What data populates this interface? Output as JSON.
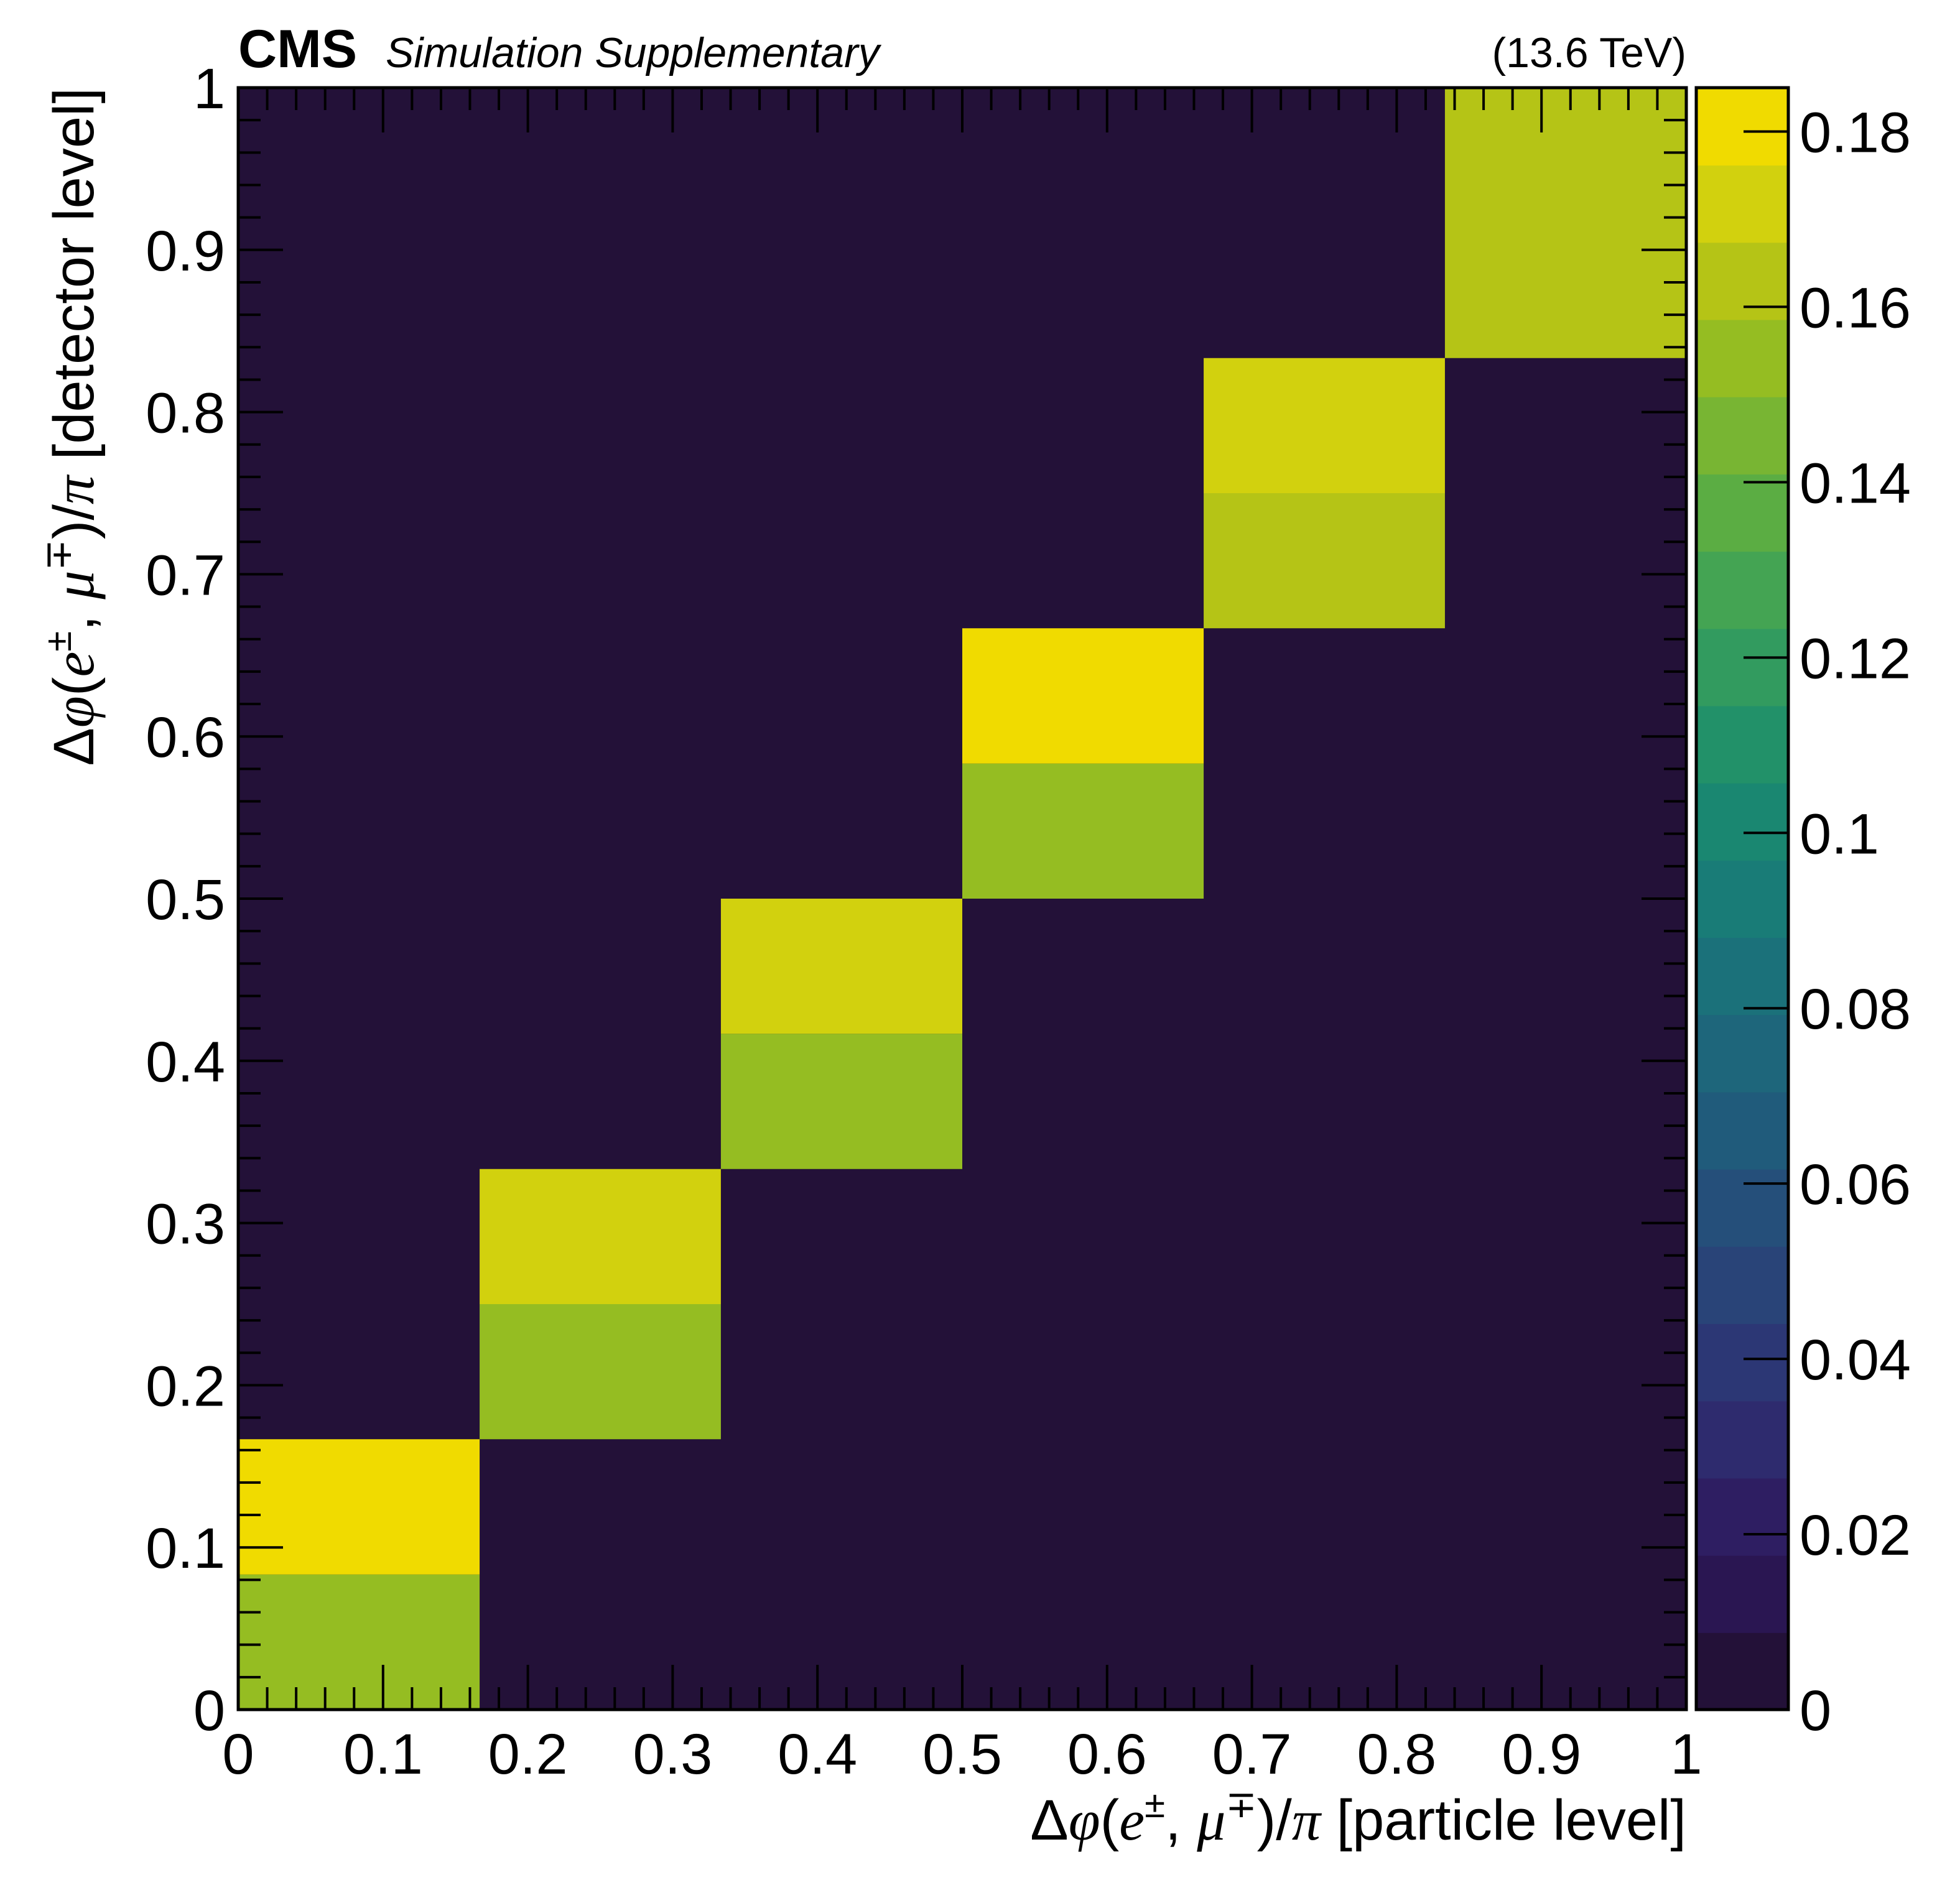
{
  "header": {
    "cms": "CMS",
    "subtitle": "Simulation Supplementary",
    "energy": "(13.6 TeV)"
  },
  "axes": {
    "x": {
      "delta_phi": "Δ",
      "phi": "φ",
      "open": "(",
      "lepton1": "e",
      "sup1": "±",
      "comma": ", ",
      "lepton2": "μ",
      "sup2": "∓",
      "close": ")/",
      "pi": "π",
      "suffix": " [particle level]"
    },
    "y": {
      "delta_phi": "Δ",
      "phi": "φ",
      "open": "(",
      "lepton1": "e",
      "sup1": "±",
      "comma": ", ",
      "lepton2": "μ",
      "sup2": "∓",
      "close": ")/",
      "pi": "π",
      "suffix": " [detector level]"
    }
  },
  "chart_data": {
    "type": "heatmap",
    "title": "",
    "xlabel": "Δφ(e±, μ∓)/π [particle level]",
    "ylabel": "Δφ(e±, μ∓)/π [detector level]",
    "xlim": [
      0,
      1
    ],
    "ylim": [
      0,
      1
    ],
    "x_ticks": [
      "0",
      "0.1",
      "0.2",
      "0.3",
      "0.4",
      "0.5",
      "0.6",
      "0.7",
      "0.8",
      "0.9",
      "1"
    ],
    "y_ticks": [
      "0",
      "0.1",
      "0.2",
      "0.3",
      "0.4",
      "0.5",
      "0.6",
      "0.7",
      "0.8",
      "0.9",
      "1"
    ],
    "x_bins": [
      0,
      0.1667,
      0.3333,
      0.5,
      0.6667,
      0.8333,
      1.0
    ],
    "y_bins": [
      0,
      0.0833,
      0.1667,
      0.25,
      0.3333,
      0.4167,
      0.5,
      0.5833,
      0.6667,
      0.75,
      0.8333,
      0.9167,
      1.0
    ],
    "cells": [
      {
        "x": [
          0,
          0.1667
        ],
        "y": [
          0,
          0.0833
        ],
        "value": 0.15
      },
      {
        "x": [
          0,
          0.1667
        ],
        "y": [
          0.0833,
          0.1667
        ],
        "value": 0.18
      },
      {
        "x": [
          0.1667,
          0.3333
        ],
        "y": [
          0.1667,
          0.25
        ],
        "value": 0.155
      },
      {
        "x": [
          0.1667,
          0.3333
        ],
        "y": [
          0.25,
          0.3333
        ],
        "value": 0.17
      },
      {
        "x": [
          0.3333,
          0.5
        ],
        "y": [
          0.3333,
          0.4167
        ],
        "value": 0.155
      },
      {
        "x": [
          0.3333,
          0.5
        ],
        "y": [
          0.4167,
          0.5
        ],
        "value": 0.17
      },
      {
        "x": [
          0.5,
          0.6667
        ],
        "y": [
          0.5,
          0.5833
        ],
        "value": 0.155
      },
      {
        "x": [
          0.5,
          0.6667
        ],
        "y": [
          0.5833,
          0.6667
        ],
        "value": 0.18
      },
      {
        "x": [
          0.6667,
          0.8333
        ],
        "y": [
          0.6667,
          0.75
        ],
        "value": 0.16
      },
      {
        "x": [
          0.6667,
          0.8333
        ],
        "y": [
          0.75,
          0.8333
        ],
        "value": 0.17
      },
      {
        "x": [
          0.8333,
          1.0
        ],
        "y": [
          0.8333,
          1.0
        ],
        "value": 0.16
      }
    ],
    "background_value": 0,
    "colorbar": {
      "range": [
        0,
        0.185
      ],
      "ticks": [
        "0",
        "0.02",
        "0.04",
        "0.06",
        "0.08",
        "0.1",
        "0.12",
        "0.14",
        "0.16",
        "0.18"
      ],
      "colors": [
        "#231138",
        "#2a1652",
        "#2e1e62",
        "#2e2b6e",
        "#2c3775",
        "#294478",
        "#254f7a",
        "#205b7b",
        "#1e667b",
        "#1b717a",
        "#197c77",
        "#1a8771",
        "#229169",
        "#329b5f",
        "#44a453",
        "#5bad43",
        "#78b533",
        "#95bd22",
        "#b5c416",
        "#d2d10e",
        "#f0db00"
      ]
    }
  }
}
